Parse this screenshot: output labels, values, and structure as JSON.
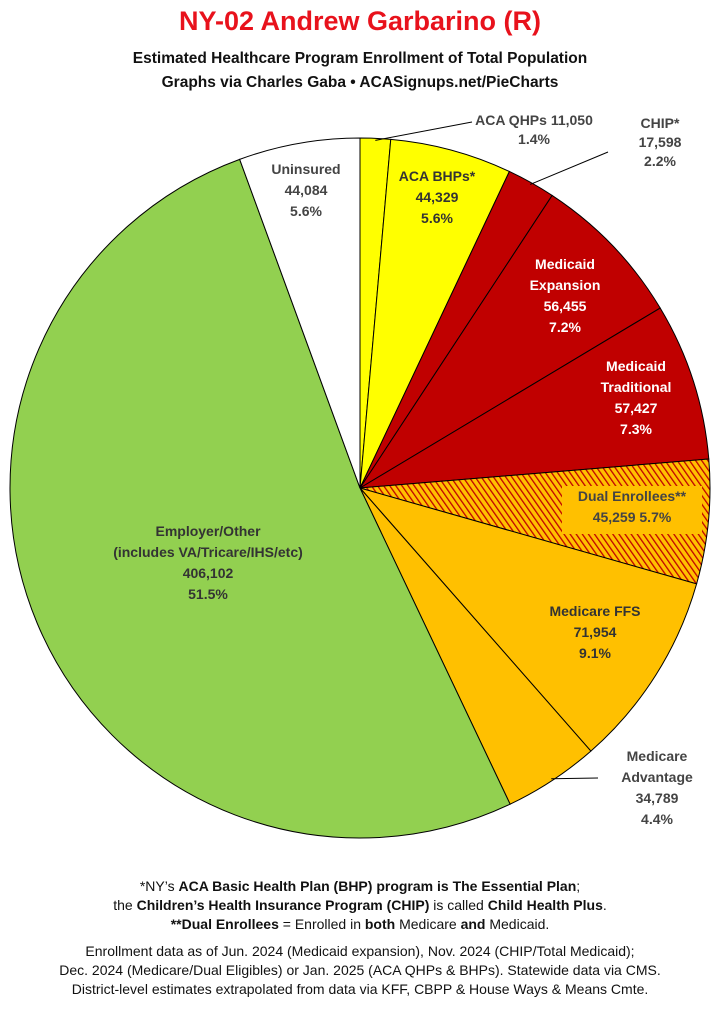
{
  "header": {
    "title": "NY-02 Andrew Garbarino (R)",
    "subtitle_line1": "Estimated Healthcare Program Enrollment of Total Population",
    "subtitle_line2": "Graphs via Charles Gaba  •  ACASignups.net/PieCharts"
  },
  "chart_data": {
    "type": "pie",
    "title": "NY-02 Andrew Garbarino (R)",
    "slices": [
      {
        "name": "ACA QHPs",
        "value": 11050,
        "percent": "1.4%",
        "color": "#ffff00",
        "label_lines": [
          "ACA QHPs 11,050",
          "1.4%"
        ]
      },
      {
        "name": "ACA BHPs*",
        "value": 44329,
        "percent": "5.6%",
        "color": "#ffff00",
        "label_lines": [
          "ACA BHPs*",
          "44,329",
          "5.6%"
        ]
      },
      {
        "name": "CHIP*",
        "value": 17598,
        "percent": "2.2%",
        "color": "#c00000",
        "label_lines": [
          "CHIP*",
          "17,598",
          "2.2%"
        ]
      },
      {
        "name": "Medicaid Expansion",
        "value": 56455,
        "percent": "7.2%",
        "color": "#c00000",
        "label_lines": [
          "Medicaid",
          "Expansion",
          "56,455",
          "7.2%"
        ]
      },
      {
        "name": "Medicaid Traditional",
        "value": 57427,
        "percent": "7.3%",
        "color": "#c00000",
        "label_lines": [
          "Medicaid",
          "Traditional",
          "57,427",
          "7.3%"
        ]
      },
      {
        "name": "Dual Enrollees**",
        "value": 45259,
        "percent": "5.7%",
        "color": "#ffc000",
        "hatch_color": "#c00000",
        "label_lines": [
          "Dual Enrollees**",
          "45,259 5.7%"
        ]
      },
      {
        "name": "Medicare FFS",
        "value": 71954,
        "percent": "9.1%",
        "color": "#ffc000",
        "label_lines": [
          "Medicare FFS",
          "71,954",
          "9.1%"
        ]
      },
      {
        "name": "Medicare Advantage",
        "value": 34789,
        "percent": "4.4%",
        "color": "#ffc000",
        "label_lines": [
          "Medicare",
          "Advantage",
          "34,789",
          "4.4%"
        ]
      },
      {
        "name": "Employer/Other (includes VA/Tricare/IHS/etc)",
        "value": 406102,
        "percent": "51.5%",
        "color": "#92d050",
        "label_lines": [
          "Employer/Other",
          "(includes VA/Tricare/IHS/etc)",
          "406,102",
          "51.5%"
        ]
      },
      {
        "name": "Uninsured",
        "value": 44084,
        "percent": "5.6%",
        "color": "#ffffff",
        "label_lines": [
          "Uninsured",
          "44,084",
          "5.6%"
        ]
      }
    ]
  },
  "footer": {
    "note1_a": "*NY’s ",
    "note1_b": "ACA Basic Health Plan (BHP) program is The Essential Plan",
    "note1_c": ";",
    "note2_a": "the ",
    "note2_b": "Children’s Health Insurance Program (CHIP)",
    "note2_c": " is called ",
    "note2_d": "Child Health Plus",
    "note2_e": ".",
    "note3_a": "**Dual Enrollees",
    "note3_b": " = Enrolled in ",
    "note3_c": "both",
    "note3_d": " Medicare ",
    "note3_e": "and",
    "note3_f": " Medicaid.",
    "source1": "Enrollment data as of Jun. 2024 (Medicaid expansion), Nov. 2024 (CHIP/Total Medicaid);",
    "source2": "Dec. 2024 (Medicare/Dual Eligibles) or Jan. 2025 (ACA QHPs & BHPs). Statewide data via CMS.",
    "source3": "District-level estimates extrapolated from data via KFF, CBPP & House Ways & Means Cmte."
  }
}
